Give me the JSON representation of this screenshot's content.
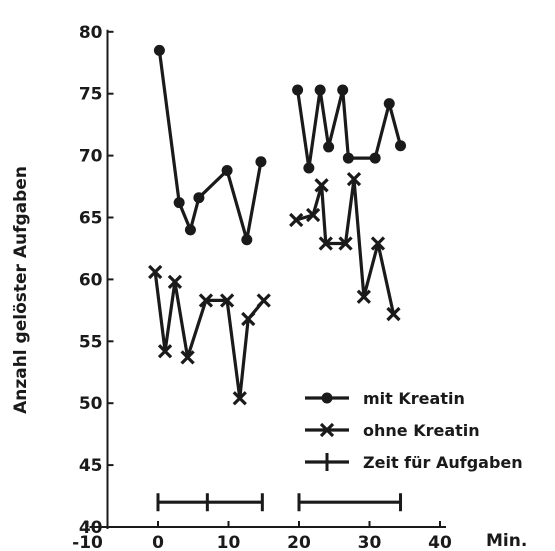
{
  "chart_data": {
    "type": "line",
    "ylabel": "Anzahl gelöster Aufgaben",
    "x_unit": "Min.",
    "xlim": [
      -10,
      40
    ],
    "ylim": [
      40,
      80
    ],
    "x_ticks": [
      -10,
      0,
      10,
      20,
      30,
      40
    ],
    "y_ticks": [
      40,
      45,
      50,
      55,
      60,
      65,
      70,
      75,
      80
    ],
    "grid": false,
    "legend_position": "bottom-right",
    "color": "#1a1a1a",
    "series": [
      {
        "name": "mit Kreatin",
        "marker": "circle",
        "segments": [
          [
            [
              0.2,
              78.5
            ],
            [
              3,
              66.2
            ],
            [
              4.6,
              64
            ],
            [
              5.8,
              66.6
            ],
            [
              9.8,
              68.8
            ],
            [
              12.6,
              63.2
            ],
            [
              14.6,
              69.5
            ]
          ],
          [
            [
              19.8,
              75.3
            ],
            [
              21.4,
              69
            ],
            [
              23,
              75.3
            ],
            [
              24.2,
              70.7
            ],
            [
              26.2,
              75.3
            ],
            [
              27,
              69.8
            ],
            [
              30.8,
              69.8
            ],
            [
              32.8,
              74.2
            ],
            [
              34.4,
              70.8
            ]
          ]
        ]
      },
      {
        "name": "ohne Kreatin",
        "marker": "x",
        "segments": [
          [
            [
              -0.4,
              60.6
            ],
            [
              1,
              54.2
            ],
            [
              2.4,
              59.8
            ],
            [
              4.2,
              53.7
            ],
            [
              6.8,
              58.3
            ],
            [
              9.8,
              58.3
            ],
            [
              11.6,
              50.4
            ],
            [
              12.8,
              56.8
            ],
            [
              15,
              58.3
            ]
          ],
          [
            [
              19.6,
              64.8
            ],
            [
              22,
              65.2
            ],
            [
              23.2,
              67.6
            ],
            [
              23.8,
              62.9
            ],
            [
              26.6,
              62.9
            ],
            [
              27.8,
              68.1
            ],
            [
              29.2,
              58.6
            ],
            [
              31.2,
              62.9
            ],
            [
              33.4,
              57.2
            ]
          ]
        ]
      },
      {
        "name": "Zeit für Aufgaben",
        "marker": "plus",
        "segments": [
          [
            [
              0,
              42
            ],
            [
              7,
              42
            ],
            [
              14.8,
              42
            ]
          ],
          [
            [
              20,
              42
            ],
            [
              34.4,
              42
            ]
          ]
        ]
      }
    ]
  }
}
